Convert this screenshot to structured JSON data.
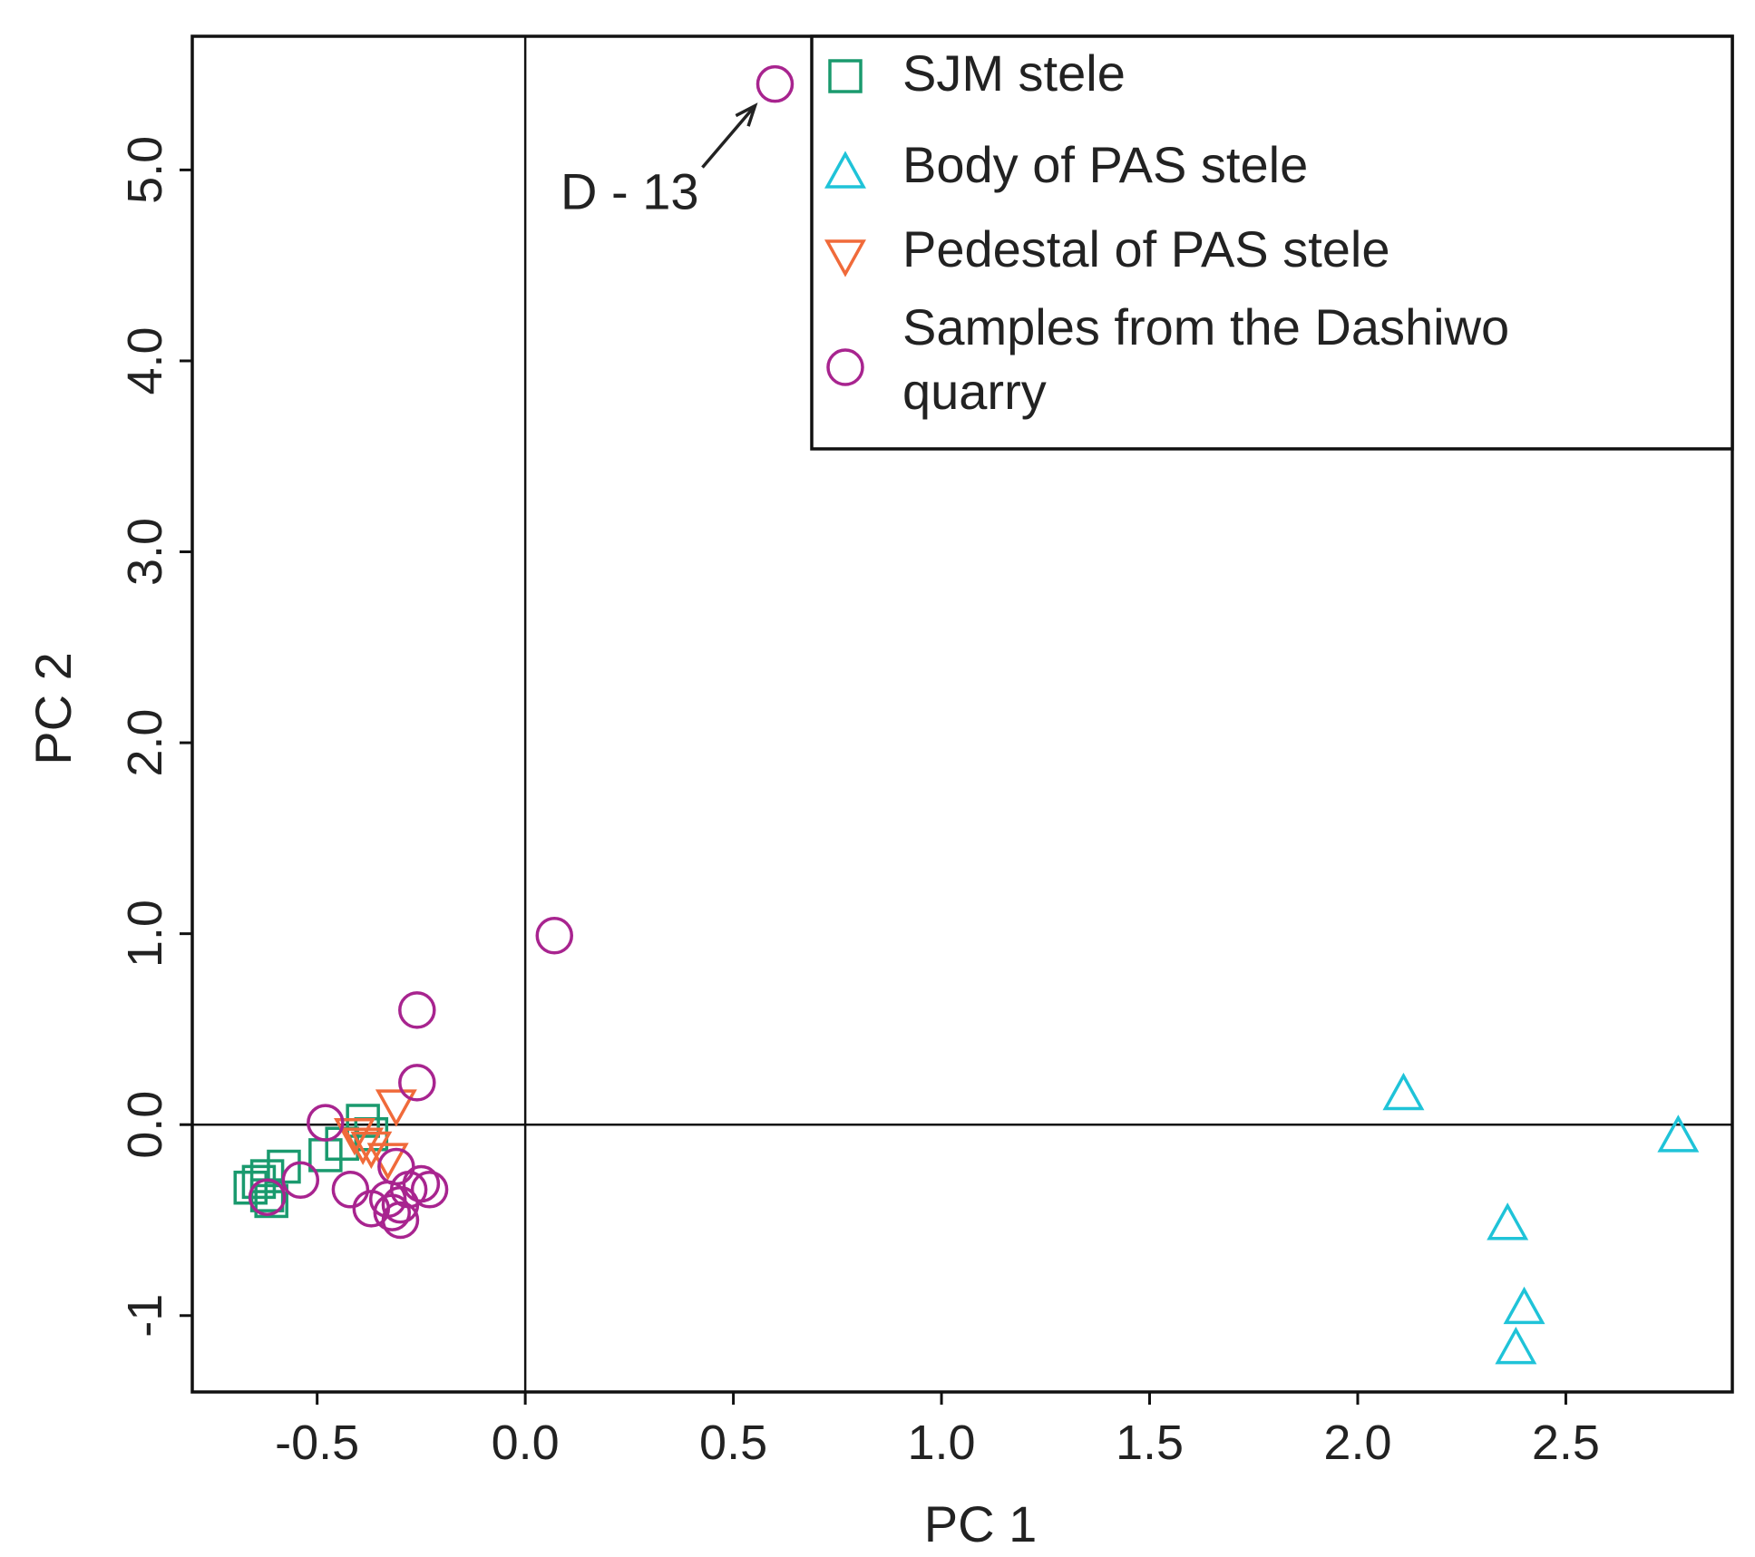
{
  "chart_data": {
    "type": "scatter",
    "title": "",
    "xlabel": "PC 1",
    "ylabel": "PC 2",
    "xlim": [
      -0.8,
      2.9
    ],
    "ylim": [
      -1.4,
      5.7
    ],
    "xticks": [
      -0.5,
      0.0,
      0.5,
      1.0,
      1.5,
      2.0,
      2.5
    ],
    "xtick_labels": [
      "-0.5",
      "0.0",
      "0.5",
      "1.0",
      "1.5",
      "2.0",
      "2.5"
    ],
    "yticks": [
      -1.0,
      0.0,
      1.0,
      2.0,
      3.0,
      4.0,
      5.0
    ],
    "ytick_labels": [
      "-1",
      "0.0",
      "1.0",
      "2.0",
      "3.0",
      "4.0",
      "5.0"
    ],
    "reference_lines": {
      "x": 0,
      "y": 0
    },
    "grid": false,
    "legend_position": "top-right",
    "series": [
      {
        "name": "SJM stele",
        "marker": "square",
        "color": "#1a9a6e",
        "points": [
          [
            -0.66,
            -0.33
          ],
          [
            -0.64,
            -0.3
          ],
          [
            -0.62,
            -0.27
          ],
          [
            -0.58,
            -0.22
          ],
          [
            -0.62,
            -0.37
          ],
          [
            -0.61,
            -0.4
          ],
          [
            -0.48,
            -0.16
          ],
          [
            -0.44,
            -0.1
          ],
          [
            -0.39,
            0.02
          ],
          [
            -0.37,
            -0.05
          ]
        ]
      },
      {
        "name": "Body of PAS stele",
        "marker": "triangle-up",
        "color": "#1fc3d8",
        "points": [
          [
            2.11,
            0.16
          ],
          [
            2.77,
            -0.06
          ],
          [
            2.36,
            -0.52
          ],
          [
            2.4,
            -0.96
          ],
          [
            2.38,
            -1.17
          ]
        ]
      },
      {
        "name": "Pedestal of PAS stele",
        "marker": "triangle-down",
        "color": "#f06a3a",
        "points": [
          [
            -0.31,
            0.1
          ],
          [
            -0.33,
            -0.18
          ],
          [
            -0.41,
            -0.05
          ],
          [
            -0.39,
            -0.1
          ],
          [
            -0.37,
            -0.12
          ]
        ]
      },
      {
        "name": "Samples from the Dashiwo quarry",
        "marker": "circle",
        "color": "#a8248f",
        "points": [
          [
            0.6,
            5.45
          ],
          [
            0.07,
            0.99
          ],
          [
            -0.26,
            0.6
          ],
          [
            -0.26,
            0.22
          ],
          [
            -0.48,
            0.01
          ],
          [
            -0.54,
            -0.29
          ],
          [
            -0.62,
            -0.38
          ],
          [
            -0.42,
            -0.34
          ],
          [
            -0.37,
            -0.44
          ],
          [
            -0.32,
            -0.46
          ],
          [
            -0.3,
            -0.5
          ],
          [
            -0.3,
            -0.42
          ],
          [
            -0.28,
            -0.34
          ],
          [
            -0.25,
            -0.31
          ],
          [
            -0.23,
            -0.34
          ],
          [
            -0.31,
            -0.22
          ],
          [
            -0.33,
            -0.39
          ]
        ]
      }
    ],
    "annotations": [
      {
        "text": "D-13",
        "display": "D - 13",
        "points_to": [
          0.6,
          5.45
        ]
      }
    ]
  }
}
